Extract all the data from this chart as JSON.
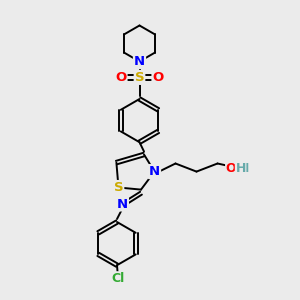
{
  "background_color": "#ebebeb",
  "bond_color": "#000000",
  "atom_colors": {
    "N": "#0000ff",
    "S_thio": "#ccaa00",
    "S_sulfo": "#ccaa00",
    "O": "#ff0000",
    "Cl": "#33aa33",
    "H": "#66aaaa",
    "C": "#000000"
  },
  "font_size": 8.5,
  "lw": 1.4
}
